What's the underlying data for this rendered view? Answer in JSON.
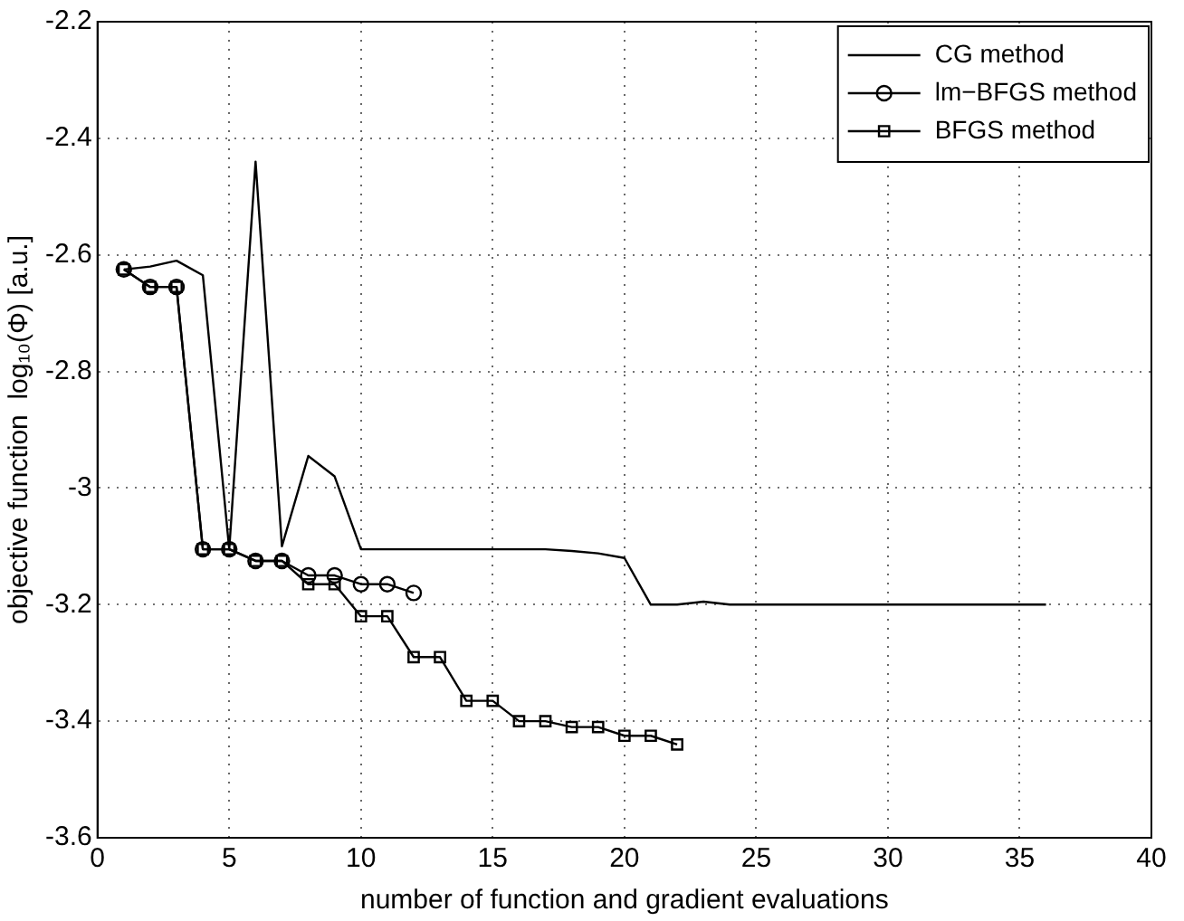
{
  "chart_data": {
    "type": "line",
    "xlabel": "number of function and gradient evaluations",
    "ylabel": "objective function  log₁₀(Φ) [a.u.]",
    "xlim": [
      0,
      40
    ],
    "xticks": [
      0,
      5,
      10,
      15,
      20,
      25,
      30,
      35,
      40
    ],
    "ylim": [
      -3.6,
      -2.2
    ],
    "yticks": [
      -3.6,
      -3.4,
      -3.2,
      -3,
      -2.8,
      -2.6,
      -2.4,
      -2.2
    ],
    "grid": true,
    "legend": "top right",
    "line_style": "solid",
    "series": [
      {
        "name": "CG method",
        "color": "#000000",
        "marker": "none",
        "x": [
          1,
          2,
          3,
          4,
          5,
          6,
          7,
          8,
          9,
          10,
          11,
          12,
          13,
          14,
          15,
          16,
          17,
          18,
          19,
          20,
          21,
          22,
          23,
          24,
          25,
          26,
          27,
          28,
          29,
          30,
          31,
          32,
          33,
          34,
          35,
          36
        ],
        "values": [
          -2.625,
          -2.62,
          -2.61,
          -2.635,
          -3.105,
          -2.44,
          -3.1,
          -2.945,
          -2.98,
          -3.105,
          -3.105,
          -3.105,
          -3.105,
          -3.105,
          -3.105,
          -3.105,
          -3.105,
          -3.108,
          -3.112,
          -3.12,
          -3.2,
          -3.2,
          -3.195,
          -3.2,
          -3.2,
          -3.2,
          -3.2,
          -3.2,
          -3.2,
          -3.2,
          -3.2,
          -3.2,
          -3.2,
          -3.2,
          -3.2,
          -3.2
        ]
      },
      {
        "name": "lm−BFGS method",
        "color": "#000000",
        "marker": "circle",
        "x": [
          1,
          2,
          3,
          4,
          5,
          6,
          7,
          8,
          9,
          10,
          11,
          12
        ],
        "values": [
          -2.625,
          -2.655,
          -2.655,
          -3.105,
          -3.105,
          -3.125,
          -3.125,
          -3.15,
          -3.15,
          -3.165,
          -3.165,
          -3.18
        ]
      },
      {
        "name": "BFGS method",
        "color": "#000000",
        "marker": "square",
        "x": [
          1,
          2,
          3,
          4,
          5,
          6,
          7,
          8,
          9,
          10,
          11,
          12,
          13,
          14,
          15,
          16,
          17,
          18,
          19,
          20,
          21,
          22
        ],
        "values": [
          -2.625,
          -2.655,
          -2.655,
          -3.105,
          -3.105,
          -3.125,
          -3.125,
          -3.165,
          -3.165,
          -3.22,
          -3.22,
          -3.29,
          -3.29,
          -3.365,
          -3.365,
          -3.4,
          -3.4,
          -3.41,
          -3.41,
          -3.425,
          -3.425,
          -3.44
        ]
      }
    ]
  }
}
